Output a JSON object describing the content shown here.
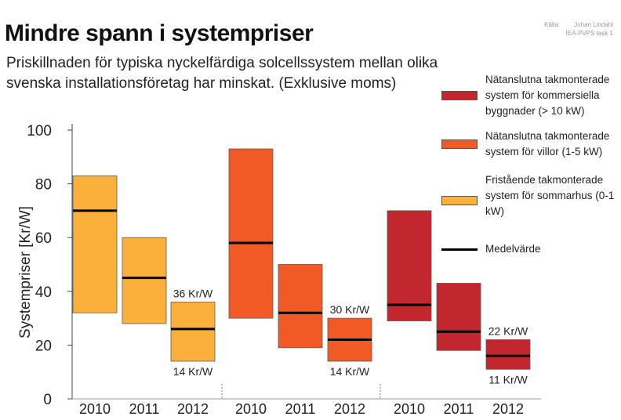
{
  "header": {
    "title": "Mindre spann i systempriser",
    "subtitle": "Priskillnaden för typiska nyckelfärdiga solcellssystem mellan olika svenska installationsföretag har minskat. (Exklusive moms)",
    "source_label": "Källa:",
    "source_line1": "Johan Lindahl",
    "source_line2": "IEA-PVPS task 1"
  },
  "legend": {
    "items": [
      {
        "label": "Nätanslutna takmonterade system för kommersiella byggnader (> 10 kW)",
        "color": "#c1272d",
        "kind": "box"
      },
      {
        "label": "Nätanslutna takmonterade system för villor (1-5 kW)",
        "color": "#f15a24",
        "kind": "box"
      },
      {
        "label": "Fristående takmonterade system för sommarhus (0-1 kW)",
        "color": "#fbb03b",
        "kind": "box"
      },
      {
        "label": "Medelvärde",
        "color": "#000000",
        "kind": "line"
      }
    ]
  },
  "chart_data": {
    "type": "floating-range-bar",
    "ylabel": "Systempriser [Kr/W]",
    "ylim": [
      0,
      100
    ],
    "yticks": [
      0,
      20,
      40,
      60,
      80,
      100
    ],
    "grid": false,
    "groups": [
      {
        "name": "Fristående takmonterade system för sommarhus (0-1 kW)",
        "color": "#fbb03b",
        "bars": [
          {
            "year": "2010",
            "low": 32,
            "high": 83,
            "mean": 70
          },
          {
            "year": "2011",
            "low": 28,
            "high": 60,
            "mean": 45
          },
          {
            "year": "2012",
            "low": 14,
            "high": 36,
            "mean": 26,
            "label_high": "36 Kr/W",
            "label_low": "14 Kr/W"
          }
        ]
      },
      {
        "name": "Nätanslutna takmonterade system för villor (1-5 kW)",
        "color": "#f15a24",
        "bars": [
          {
            "year": "2010",
            "low": 30,
            "high": 93,
            "mean": 58
          },
          {
            "year": "2011",
            "low": 19,
            "high": 50,
            "mean": 32
          },
          {
            "year": "2012",
            "low": 14,
            "high": 30,
            "mean": 22,
            "label_high": "30 Kr/W",
            "label_low": "14 Kr/W"
          }
        ]
      },
      {
        "name": "Nätanslutna takmonterade system för kommersiella byggnader (> 10 kW)",
        "color": "#c1272d",
        "bars": [
          {
            "year": "2010",
            "low": 29,
            "high": 70,
            "mean": 35
          },
          {
            "year": "2011",
            "low": 18,
            "high": 43,
            "mean": 25
          },
          {
            "year": "2012",
            "low": 11,
            "high": 22,
            "mean": 16,
            "label_high": "22 Kr/W",
            "label_low": "11 Kr/W"
          }
        ]
      }
    ]
  }
}
